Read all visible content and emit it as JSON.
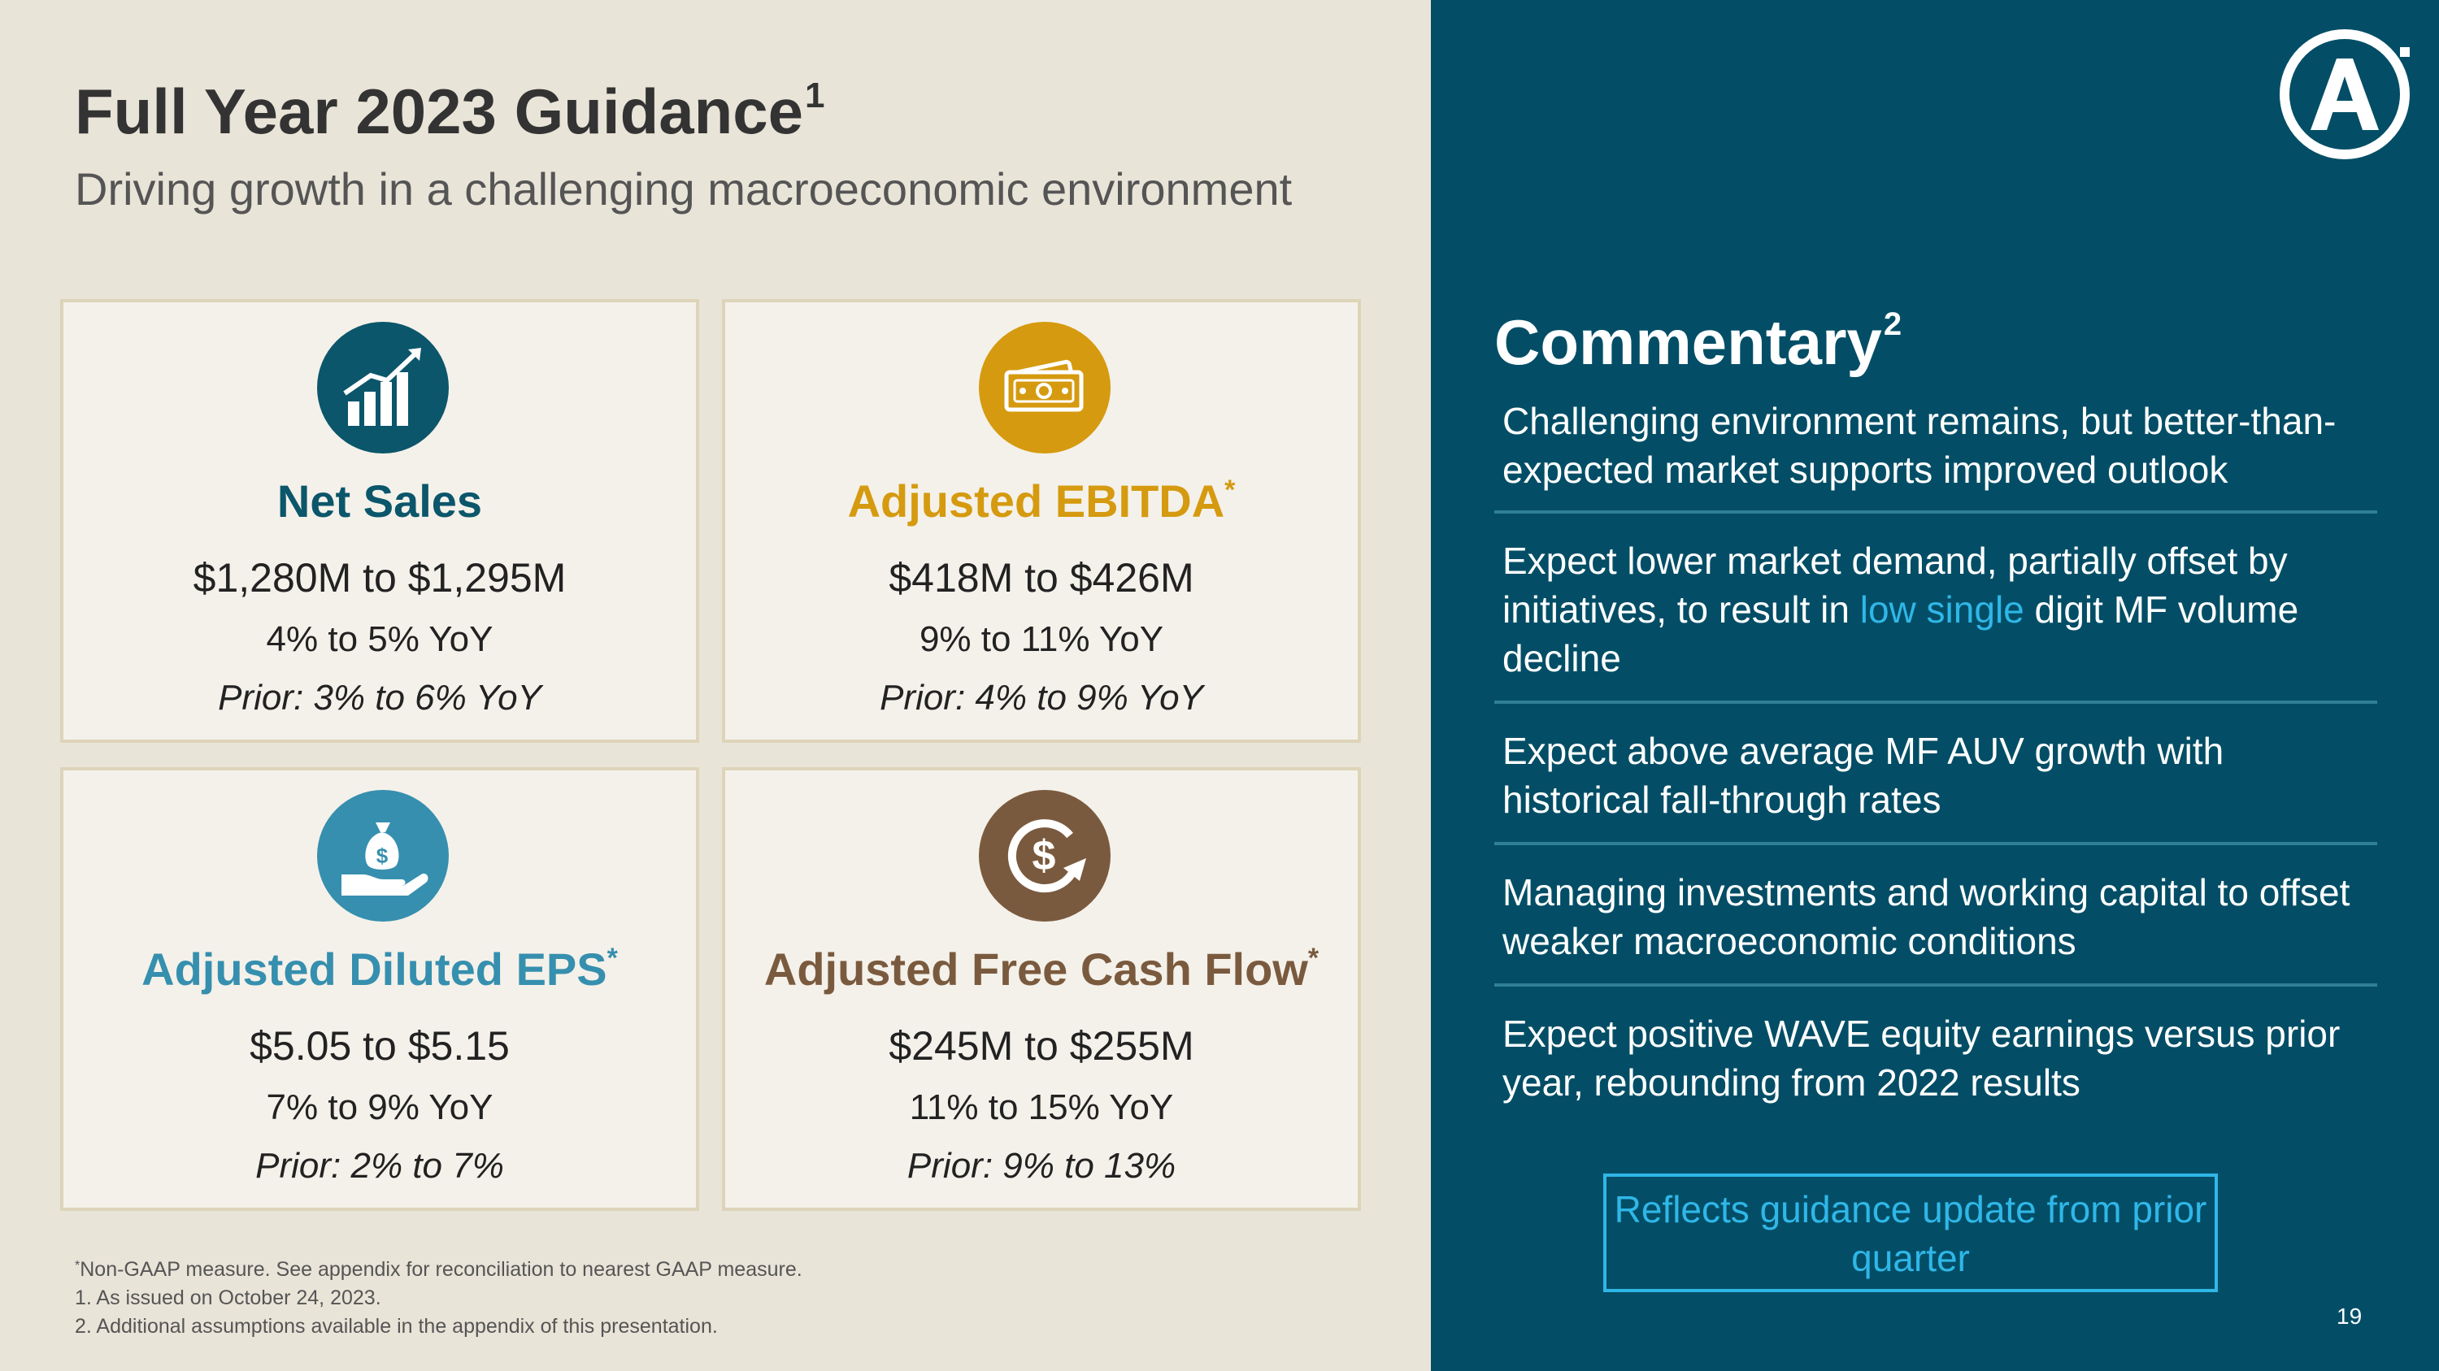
{
  "header": {
    "title": "Full Year 2023 Guidance",
    "title_note": "1",
    "subtitle": "Driving growth in a challenging macroeconomic environment"
  },
  "cards": [
    {
      "icon": "bar-chart-growth-icon",
      "metric": "Net Sales",
      "asterisk": "",
      "range": "$1,280M to $1,295M",
      "yoy": "4% to 5% YoY",
      "prior": "Prior: 3% to 6% YoY",
      "color": "#0b566b"
    },
    {
      "icon": "money-bills-icon",
      "metric": "Adjusted EBITDA",
      "asterisk": "*",
      "range": "$418M to $426M",
      "yoy": "9% to 11% YoY",
      "prior": "Prior: 4% to 9% YoY",
      "color": "#d59a0f"
    },
    {
      "icon": "hand-money-bag-icon",
      "metric": "Adjusted Diluted EPS",
      "asterisk": "*",
      "range": "$5.05 to $5.15",
      "yoy": "7% to 9% YoY",
      "prior": "Prior: 2% to 7%",
      "color": "#368fae"
    },
    {
      "icon": "dollar-cycle-arrow-icon",
      "metric": "Adjusted Free Cash Flow",
      "asterisk": "*",
      "range": "$245M to $255M",
      "yoy": "11% to 15% YoY",
      "prior": "Prior: 9% to 13%",
      "color": "#7a5a3e"
    }
  ],
  "footnotes": {
    "asterisk_mark": "*",
    "asterisk_text": "Non-GAAP measure. See appendix for reconciliation to nearest GAAP measure.",
    "note1": "1. As issued on October 24, 2023.",
    "note2": "2. Additional assumptions available in the appendix of this presentation."
  },
  "commentary": {
    "title": "Commentary",
    "title_note": "2",
    "items": [
      {
        "text": "Challenging environment remains, but better-than-expected market supports improved outlook"
      },
      {
        "before": "Expect lower market demand, partially offset by initiatives, to result in ",
        "highlight": "low single",
        "after": " digit MF volume decline"
      },
      {
        "text": "Expect above average MF AUV growth with historical fall-through rates"
      },
      {
        "text": "Managing investments and working capital to offset weaker macroeconomic conditions"
      },
      {
        "text": "Expect positive WAVE equity earnings versus prior year, rebounding from 2022 results"
      }
    ],
    "highlight_color": "#2fb7e8"
  },
  "badge": {
    "text": "Reflects guidance update from prior quarter"
  },
  "logo": {
    "icon": "company-logo-a-icon"
  },
  "page_number": "19",
  "colors": {
    "left_background": "#e9e4d8",
    "right_background": "#034e66",
    "card_background": "#f4f1ea",
    "card_border": "#ddd4b9"
  }
}
